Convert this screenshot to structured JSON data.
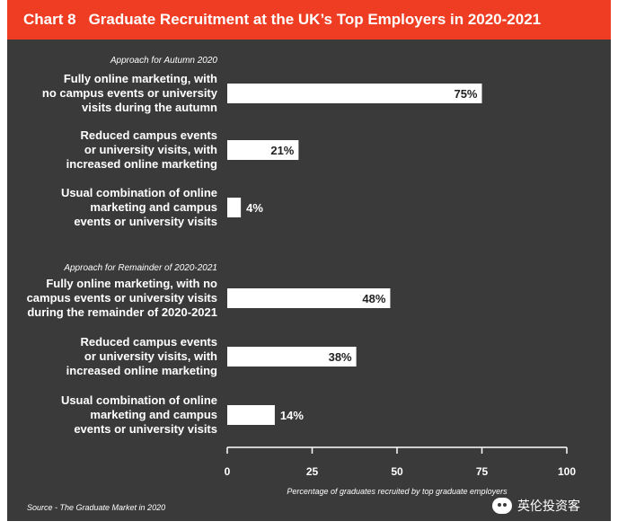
{
  "header": {
    "chart_number": "Chart 8",
    "title": "Graduate Recruitment at the UK’s Top Employers in 2020-2021"
  },
  "source": "Source - The Graduate Market in 2020",
  "watermark": "英伦投资客",
  "colors": {
    "header_bg": "#ee3d23",
    "panel_bg": "#3a3a3a",
    "bar": "#ffffff",
    "text": "#ffffff",
    "bar_label": "#222222"
  },
  "chart_data": {
    "type": "bar",
    "orientation": "horizontal",
    "xlabel": "Percentage of graduates recruited by top graduate employers",
    "xlim": [
      0,
      100
    ],
    "xticks": [
      0,
      25,
      50,
      75,
      100
    ],
    "value_suffix": "%",
    "groups": [
      {
        "name": "Approach for Autumn 2020",
        "bars": [
          {
            "label": [
              "Fully online marketing, with",
              "no campus events or university",
              "visits during the autumn"
            ],
            "value": 75
          },
          {
            "label": [
              "Reduced campus events",
              "or university visits, with",
              "increased online marketing"
            ],
            "value": 21
          },
          {
            "label": [
              "Usual combination of online",
              "marketing and campus",
              "events or university visits"
            ],
            "value": 4
          }
        ]
      },
      {
        "name": "Approach for Remainder of 2020-2021",
        "bars": [
          {
            "label": [
              "Fully online marketing, with no",
              "campus events or university visits",
              "during the remainder of 2020-2021"
            ],
            "value": 48
          },
          {
            "label": [
              "Reduced campus events",
              "or university visits, with",
              "increased online marketing"
            ],
            "value": 38
          },
          {
            "label": [
              "Usual combination of online",
              "marketing and campus",
              "events or university visits"
            ],
            "value": 14
          }
        ]
      }
    ]
  }
}
